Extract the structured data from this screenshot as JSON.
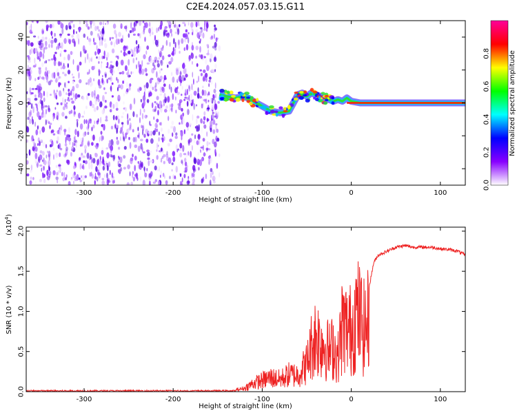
{
  "title": "C2E4.2024.057.03.15.G11",
  "chart_data": [
    {
      "type": "heatmap",
      "xlabel": "Height of straight line (km)",
      "ylabel": "Frequency (Hz)",
      "xlim": [
        -365,
        128
      ],
      "ylim": [
        -50,
        50
      ],
      "xticks": [
        -300,
        -200,
        -100,
        0,
        100
      ],
      "yticks": [
        -40,
        -20,
        0,
        20,
        40
      ],
      "noise_region_end_km": -148,
      "trace": {
        "x": [
          -148,
          -140,
          -130,
          -120,
          -110,
          -100,
          -90,
          -80,
          -70,
          -60,
          -55,
          -50,
          -45,
          -40,
          -35,
          -30,
          -25,
          -20,
          -15,
          -10,
          -5,
          0,
          10,
          20,
          40,
          60,
          80,
          100,
          128
        ],
        "y": [
          5,
          4,
          3,
          4,
          1,
          -2,
          -5,
          -6,
          -5,
          5,
          6,
          4,
          6,
          5,
          4,
          3,
          2,
          1,
          2,
          1,
          3,
          1,
          0,
          0,
          0,
          0,
          0,
          0,
          0
        ]
      },
      "colorbar": {
        "label": "Normalized spectral amplitude",
        "ticks": [
          0.0,
          0.2,
          0.4,
          0.6,
          0.8
        ],
        "range": [
          0,
          1
        ],
        "colors": [
          "#ffffff",
          "#8800ff",
          "#0000ff",
          "#00ffff",
          "#00ff00",
          "#ffff00",
          "#ff0000",
          "#ff0099"
        ]
      }
    },
    {
      "type": "line",
      "xlabel": "Height of straight line (km)",
      "ylabel": "SNR (10 * v/v)",
      "y_multiplier_label": "(x10",
      "y_multiplier_exponent": "4",
      "xlim": [
        -365,
        128
      ],
      "ylim": [
        0,
        2.05
      ],
      "xticks": [
        -300,
        -200,
        -100,
        0,
        100
      ],
      "yticks": [
        "0.0",
        "0.5",
        "1.0",
        "1.5",
        "2.0"
      ],
      "series": [
        {
          "color": "#ee2222",
          "x": [
            -365,
            -300,
            -200,
            -150,
            -130,
            -120,
            -110,
            -100,
            -90,
            -80,
            -70,
            -60,
            -50,
            -45,
            -40,
            -35,
            -30,
            -25,
            -20,
            -15,
            -10,
            -5,
            0,
            5,
            10,
            15,
            20,
            25,
            30,
            40,
            50,
            60,
            70,
            80,
            90,
            100,
            110,
            120,
            128
          ],
          "y": [
            0.01,
            0.01,
            0.01,
            0.02,
            0.03,
            0.06,
            0.15,
            0.2,
            0.25,
            0.22,
            0.3,
            0.3,
            0.5,
            0.8,
            1.0,
            0.9,
            0.85,
            0.7,
            0.8,
            0.6,
            1.2,
            1.1,
            1.1,
            1.4,
            1.3,
            1.1,
            1.3,
            1.6,
            1.7,
            1.75,
            1.8,
            1.82,
            1.8,
            1.8,
            1.8,
            1.78,
            1.77,
            1.75,
            1.7
          ]
        }
      ]
    }
  ]
}
